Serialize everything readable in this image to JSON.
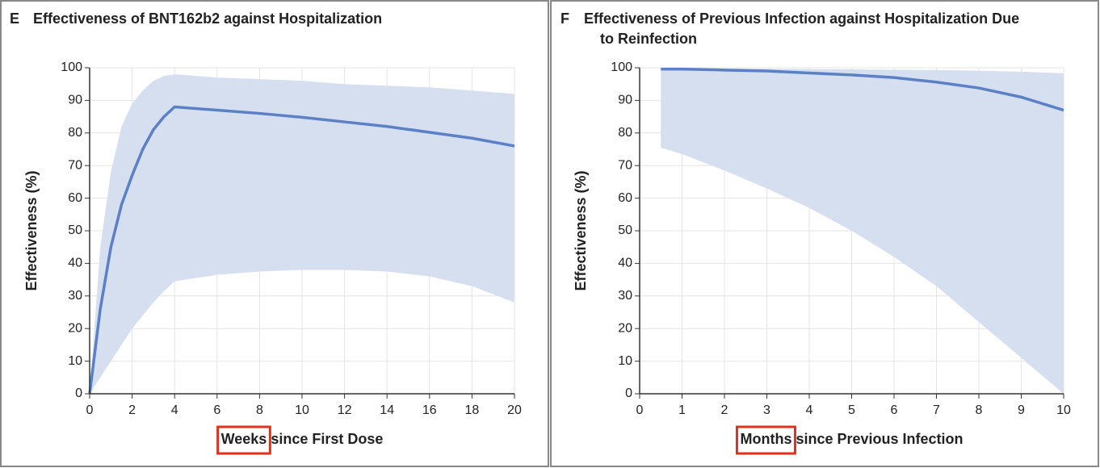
{
  "chart_data": [
    {
      "type": "line-band",
      "panel": "E",
      "title": [
        "Effectiveness of BNT162b2 against Hospitalization"
      ],
      "y_label": "Effectiveness (%)",
      "x_label": {
        "highlighted": "Weeks",
        "text": "since First Dose"
      },
      "x": [
        0,
        0.5,
        1,
        1.5,
        2,
        2.5,
        3,
        3.5,
        4,
        6,
        8,
        10,
        12,
        14,
        16,
        18,
        20
      ],
      "values": [
        0,
        26,
        45,
        58,
        67,
        75,
        81,
        85,
        88,
        87,
        86,
        84.8,
        83.4,
        82,
        80.2,
        78.4,
        76
      ],
      "upper": [
        0,
        45,
        68,
        82,
        89,
        93,
        96,
        97.5,
        98,
        97,
        96.5,
        96,
        95,
        94.5,
        94,
        93,
        92
      ],
      "lower": [
        0,
        5,
        10,
        15,
        20,
        24,
        28,
        31.5,
        34.5,
        36.5,
        37.5,
        38,
        38,
        37.5,
        36,
        33,
        28
      ],
      "color": "#5b80c6",
      "band_color": "#d5dff0",
      "xlim": [
        0,
        20
      ],
      "xticks": [
        0,
        2,
        4,
        6,
        8,
        10,
        12,
        14,
        16,
        18,
        20
      ],
      "ylim": [
        0,
        100
      ],
      "yticks": [
        0,
        10,
        20,
        30,
        40,
        50,
        60,
        70,
        80,
        90,
        100
      ],
      "grid": true
    },
    {
      "type": "line-band",
      "panel": "F",
      "title": [
        "Effectiveness of Previous Infection against Hospitalization Due",
        "to Reinfection"
      ],
      "y_label": "Effectiveness (%)",
      "x_label": {
        "highlighted": "Months",
        "text": "since Previous Infection"
      },
      "x": [
        0.5,
        1,
        2,
        3,
        4,
        5,
        6,
        7,
        8,
        9,
        10
      ],
      "values": [
        99.6,
        99.6,
        99.3,
        99,
        98.4,
        97.8,
        97,
        95.6,
        93.8,
        91,
        87
      ],
      "upper": [
        99.8,
        99.8,
        99.8,
        99.7,
        99.6,
        99.5,
        99.4,
        99.3,
        99.1,
        98.8,
        98.3
      ],
      "lower": [
        75.5,
        73.5,
        68.5,
        63,
        57,
        50,
        42,
        33,
        22,
        11,
        0
      ],
      "color": "#5b80c6",
      "band_color": "#d5dff0",
      "xlim": [
        0,
        10
      ],
      "xticks": [
        0,
        1,
        2,
        3,
        4,
        5,
        6,
        7,
        8,
        9,
        10
      ],
      "ylim": [
        0,
        100
      ],
      "yticks": [
        0,
        10,
        20,
        30,
        40,
        50,
        60,
        70,
        80,
        90,
        100
      ],
      "grid": true
    }
  ]
}
